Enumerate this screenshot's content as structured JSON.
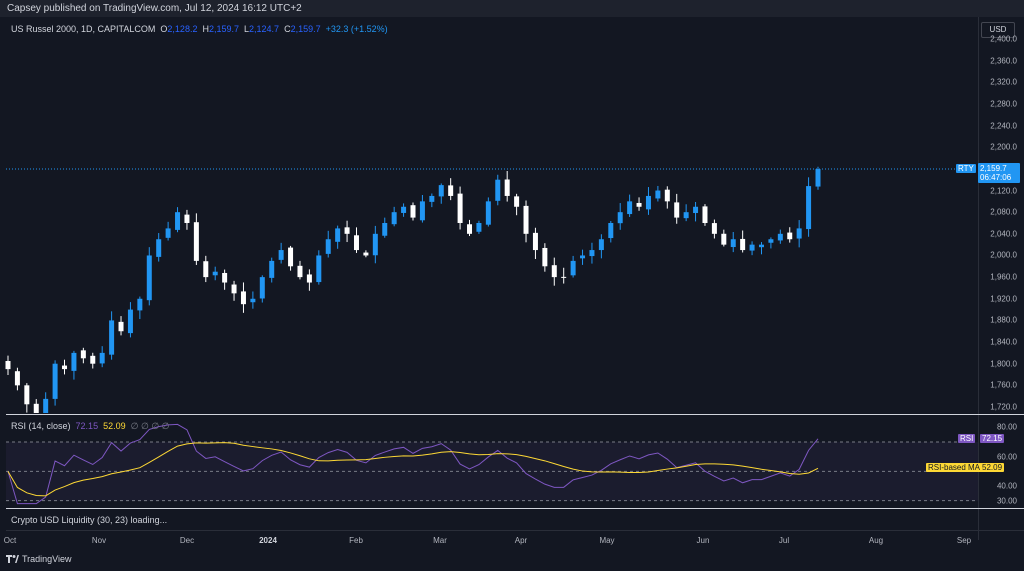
{
  "header": {
    "published_text": "Capsey published on TradingView.com, Jul 12, 2024 16:12 UTC+2"
  },
  "legend": {
    "symbol": "US Russel 2000, 1D, CAPITALCOM",
    "o_label": "O",
    "o_value": "2,128.2",
    "h_label": "H",
    "h_value": "2,159.7",
    "l_label": "L",
    "l_value": "2,124.7",
    "c_label": "C",
    "c_value": "2,159.7",
    "change": "+32.3 (+1.52%)"
  },
  "currency_button": "USD",
  "price_axis": {
    "ticks": [
      "2,400.0",
      "2,360.0",
      "2,320.0",
      "2,280.0",
      "2,240.0",
      "2,200.0",
      "2,160.0",
      "2,120.0",
      "2,080.0",
      "2,040.0",
      "2,000.0",
      "1,960.0",
      "1,920.0",
      "1,880.0",
      "1,840.0",
      "1,800.0",
      "1,760.0",
      "1,720.0"
    ],
    "last_price_tag": {
      "symbol": "RTY",
      "price": "2,159.7",
      "countdown": "06:47:06"
    }
  },
  "rsi": {
    "title": "RSI (14, close)",
    "value": "72.15",
    "ma_value": "52.09",
    "extras": "∅ ∅ ∅ ∅",
    "ticks": [
      "80.00",
      "60.00",
      "40.00",
      "30.00"
    ],
    "tag_rsi_label": "RSI",
    "tag_rsi_value": "72.15",
    "tag_ma_label": "RSI-based MA",
    "tag_ma_value": "52.09"
  },
  "liquidity": {
    "title": "Crypto USD Liquidity (30, 23) loading..."
  },
  "time_axis": [
    "Oct",
    "Nov",
    "Dec",
    "2024",
    "Feb",
    "Mar",
    "Apr",
    "May",
    "Jun",
    "Jul",
    "Aug",
    "Sep"
  ],
  "brand": "TradingView",
  "colors": {
    "background": "#131722",
    "up_candle": "#2196f3",
    "down_candle": "#ffffff",
    "rsi_line": "#7e57c2",
    "rsi_ma": "#fdd835",
    "accent": "#2962ff"
  },
  "chart_data": {
    "type": "candlestick",
    "ylim": [
      1700,
      2400
    ],
    "close_series_approx": [
      1790,
      1760,
      1725,
      1705,
      1735,
      1800,
      1790,
      1820,
      1810,
      1800,
      1820,
      1880,
      1860,
      1900,
      1920,
      2000,
      2030,
      2050,
      2080,
      2060,
      1990,
      1960,
      1970,
      1950,
      1930,
      1910,
      1920,
      1960,
      1990,
      2010,
      1980,
      1960,
      1950,
      2000,
      2030,
      2050,
      2040,
      2010,
      2000,
      2040,
      2060,
      2080,
      2090,
      2070,
      2100,
      2110,
      2130,
      2110,
      2060,
      2040,
      2060,
      2100,
      2140,
      2110,
      2090,
      2040,
      2010,
      1980,
      1960,
      1960,
      1990,
      2000,
      2010,
      2030,
      2060,
      2080,
      2100,
      2090,
      2110,
      2120,
      2100,
      2070,
      2080,
      2090,
      2060,
      2040,
      2020,
      2030,
      2010,
      2020,
      2020,
      2030,
      2040,
      2030,
      2050,
      2128.2,
      2159.7
    ],
    "rsi": {
      "ylim": [
        25,
        85
      ],
      "value_last": 72.15,
      "ma_last": 52.09,
      "levels": [
        70,
        50,
        30
      ]
    }
  }
}
